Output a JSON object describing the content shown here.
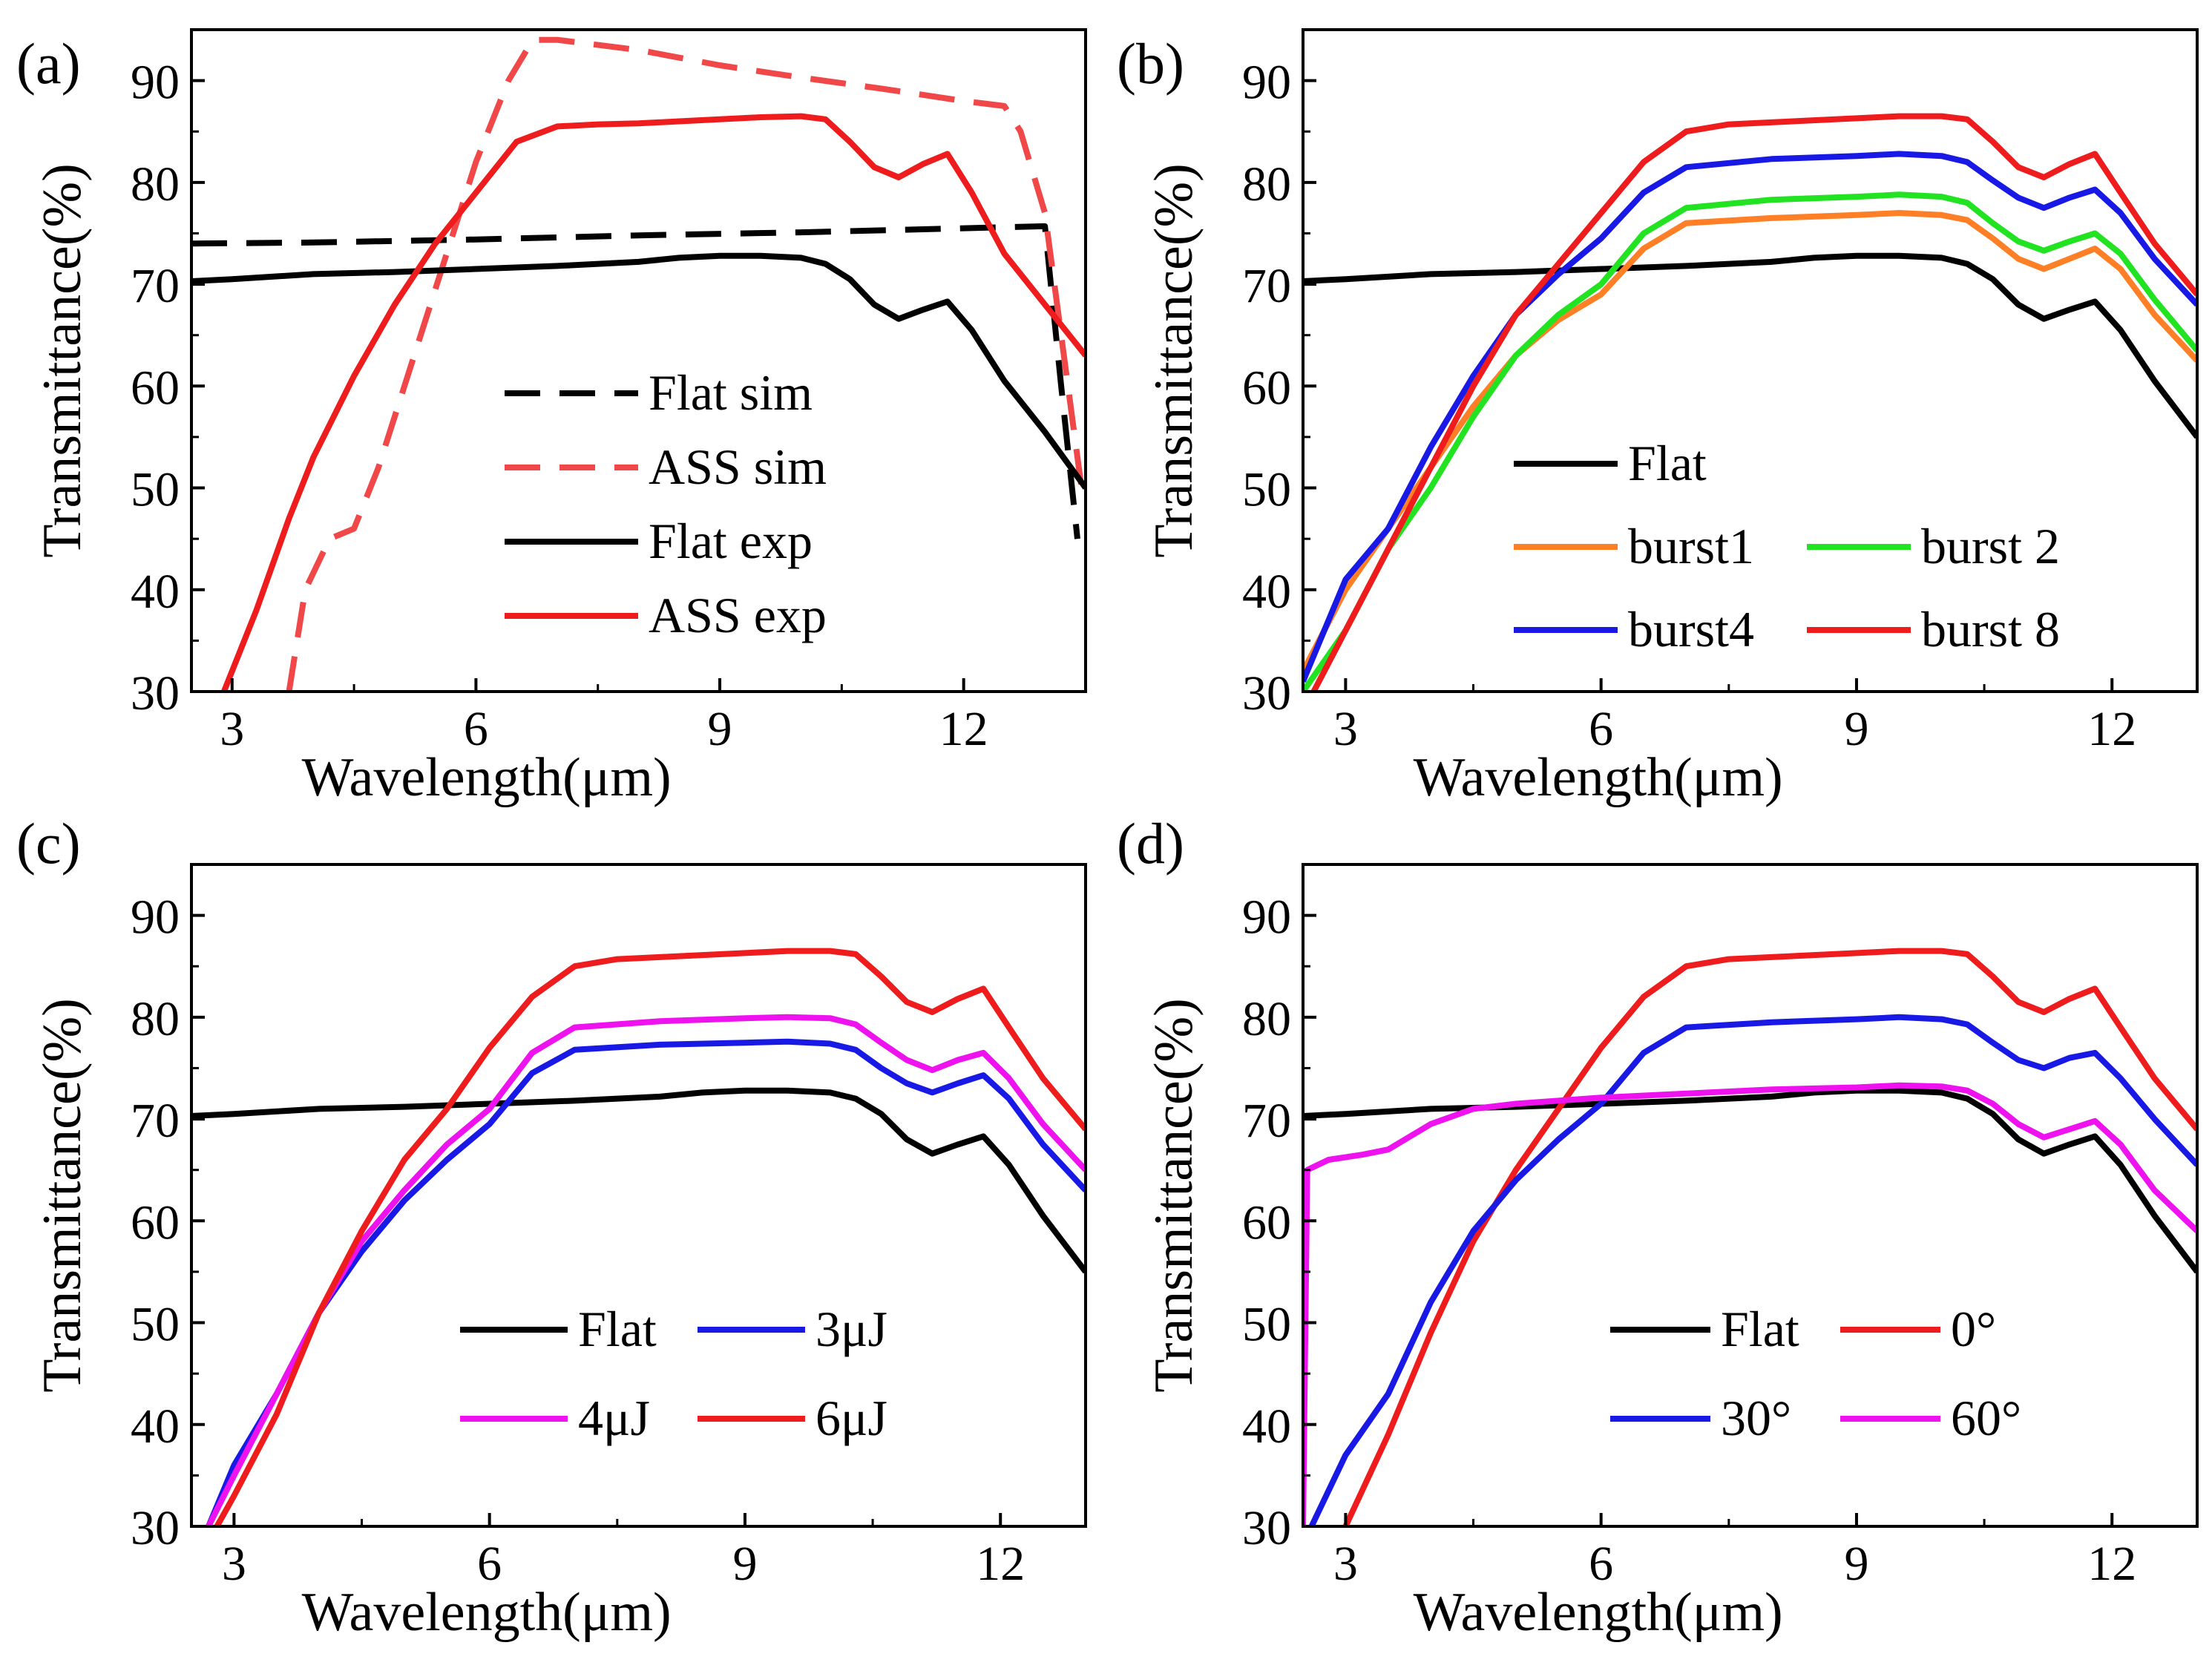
{
  "figure": {
    "panel_count": 4
  },
  "chart_data": [
    {
      "panel": "(a)",
      "type": "line",
      "xlabel": "Wavelength(μm)",
      "ylabel": "Transmittance(%)",
      "xlim": [
        2.5,
        13.5
      ],
      "ylim": [
        30,
        95
      ],
      "xticks": [
        3,
        6,
        9,
        12
      ],
      "yticks": [
        30,
        40,
        50,
        60,
        70,
        80,
        90
      ],
      "legend_position": "center",
      "series": [
        {
          "name": "Flat sim",
          "color": "#000000",
          "dash": true,
          "x": [
            2.5,
            4,
            6,
            8,
            10,
            12,
            13.0,
            13.2,
            13.4
          ],
          "y": [
            74.0,
            74.1,
            74.4,
            74.8,
            75.1,
            75.5,
            75.7,
            60,
            45
          ]
        },
        {
          "name": "ASS sim",
          "color": "#f04848",
          "dash": true,
          "x": [
            3.7,
            3.9,
            4.2,
            4.5,
            4.8,
            5.2,
            5.6,
            6.0,
            6.4,
            6.7,
            7.0,
            8,
            9,
            10,
            11,
            12,
            12.5,
            12.7,
            13.0,
            13.2,
            13.45
          ],
          "y": [
            30,
            40,
            45,
            46,
            52,
            62,
            72,
            82,
            90,
            94,
            94,
            93,
            91.5,
            90.3,
            89.2,
            88.0,
            87.5,
            85,
            77,
            65,
            50
          ]
        },
        {
          "name": "Flat exp",
          "color": "#000000",
          "dash": false,
          "x": [
            2.5,
            3,
            4,
            5,
            6,
            7,
            8,
            8.5,
            9,
            9.5,
            10,
            10.3,
            10.6,
            10.9,
            11.2,
            11.5,
            11.8,
            12.1,
            12.5,
            13.0,
            13.5
          ],
          "y": [
            70.3,
            70.5,
            71.0,
            71.2,
            71.5,
            71.8,
            72.2,
            72.6,
            72.8,
            72.8,
            72.6,
            72.0,
            70.5,
            68.0,
            66.6,
            67.5,
            68.3,
            65.5,
            60.5,
            55.5,
            50.0
          ]
        },
        {
          "name": "ASS exp",
          "color": "#ee1c1c",
          "dash": false,
          "x": [
            2.9,
            3.3,
            3.7,
            4.0,
            4.5,
            5.0,
            5.5,
            6.0,
            6.5,
            7.0,
            7.5,
            8,
            8.5,
            9,
            9.5,
            10,
            10.3,
            10.6,
            10.9,
            11.2,
            11.5,
            11.8,
            12.1,
            12.5,
            13.0,
            13.5
          ],
          "y": [
            30,
            38,
            47,
            53,
            61,
            68,
            74,
            79,
            84,
            85.5,
            85.7,
            85.8,
            86,
            86.2,
            86.4,
            86.5,
            86.2,
            84.0,
            81.5,
            80.5,
            81.8,
            82.8,
            79,
            73,
            68,
            63
          ]
        }
      ]
    },
    {
      "panel": "(b)",
      "type": "line",
      "xlabel": "Wavelength(μm)",
      "ylabel": "Transmittance(%)",
      "xlim": [
        2.5,
        13.0
      ],
      "ylim": [
        30,
        95
      ],
      "xticks": [
        3,
        6,
        9,
        12
      ],
      "yticks": [
        30,
        40,
        50,
        60,
        70,
        80,
        90
      ],
      "legend_position": "bottom-left",
      "series": [
        {
          "name": "Flat",
          "color": "#000000",
          "x": [
            2.5,
            3,
            4,
            5,
            6,
            7,
            8,
            8.5,
            9,
            9.5,
            10,
            10.3,
            10.6,
            10.9,
            11.2,
            11.5,
            11.8,
            12.1,
            12.5,
            13.0
          ],
          "y": [
            70.3,
            70.5,
            71.0,
            71.2,
            71.5,
            71.8,
            72.2,
            72.6,
            72.8,
            72.8,
            72.6,
            72.0,
            70.5,
            68.0,
            66.6,
            67.5,
            68.3,
            65.5,
            60.5,
            55.0
          ]
        },
        {
          "name": "burst1",
          "color": "#ff7f27",
          "x": [
            2.5,
            3,
            3.5,
            4,
            4.5,
            5,
            5.5,
            6,
            6.5,
            7,
            8,
            9,
            9.5,
            10,
            10.3,
            10.6,
            10.9,
            11.2,
            11.5,
            11.8,
            12.1,
            12.5,
            13.0
          ],
          "y": [
            32,
            40,
            46,
            52,
            58,
            63,
            66.5,
            69,
            73.5,
            76,
            76.5,
            76.8,
            77,
            76.8,
            76.3,
            74.5,
            72.5,
            71.5,
            72.5,
            73.5,
            71.5,
            67,
            62.5
          ]
        },
        {
          "name": "burst 2",
          "color": "#22e322",
          "x": [
            2.5,
            3,
            3.5,
            4,
            4.5,
            5,
            5.5,
            6,
            6.5,
            7,
            8,
            9,
            9.5,
            10,
            10.3,
            10.6,
            10.9,
            11.2,
            11.5,
            11.8,
            12.1,
            12.5,
            13.0
          ],
          "y": [
            30,
            36,
            44,
            50,
            57,
            63,
            67,
            70,
            75,
            77.5,
            78.3,
            78.6,
            78.8,
            78.6,
            78,
            76,
            74.2,
            73.3,
            74.2,
            75,
            73,
            68.5,
            63.5
          ]
        },
        {
          "name": "burst4",
          "color": "#1919e6",
          "x": [
            2.5,
            3,
            3.5,
            4,
            4.5,
            5,
            5.5,
            6,
            6.5,
            7,
            8,
            9,
            9.5,
            10,
            10.3,
            10.6,
            10.9,
            11.2,
            11.5,
            11.8,
            12.1,
            12.5,
            13.0
          ],
          "y": [
            31,
            41,
            46,
            54,
            61,
            67,
            71,
            74.5,
            79,
            81.5,
            82.3,
            82.6,
            82.8,
            82.6,
            82,
            80.2,
            78.5,
            77.5,
            78.5,
            79.3,
            77,
            72.5,
            68
          ]
        },
        {
          "name": "burst 8",
          "color": "#ee1c1c",
          "x": [
            2.5,
            3,
            3.5,
            4,
            4.5,
            5,
            5.5,
            6,
            6.5,
            7,
            7.5,
            8,
            9,
            9.5,
            10,
            10.3,
            10.6,
            10.9,
            11.2,
            11.5,
            11.8,
            12.1,
            12.5,
            13.0
          ],
          "y": [
            28,
            36,
            44,
            52,
            60,
            67,
            72,
            77,
            82,
            85,
            85.7,
            85.9,
            86.3,
            86.5,
            86.5,
            86.2,
            84,
            81.5,
            80.5,
            81.8,
            82.8,
            79,
            74,
            69
          ]
        }
      ]
    },
    {
      "panel": "(c)",
      "type": "line",
      "xlabel": "Wavelength(μm)",
      "ylabel": "Transmittance(%)",
      "xlim": [
        2.5,
        13.0
      ],
      "ylim": [
        30,
        95
      ],
      "xticks": [
        3,
        6,
        9,
        12
      ],
      "yticks": [
        30,
        40,
        50,
        60,
        70,
        80,
        90
      ],
      "legend_position": "bottom-right",
      "series": [
        {
          "name": "Flat",
          "color": "#000000",
          "x": [
            2.5,
            3,
            4,
            5,
            6,
            7,
            8,
            8.5,
            9,
            9.5,
            10,
            10.3,
            10.6,
            10.9,
            11.2,
            11.5,
            11.8,
            12.1,
            12.5,
            13.0
          ],
          "y": [
            70.3,
            70.5,
            71.0,
            71.2,
            71.5,
            71.8,
            72.2,
            72.6,
            72.8,
            72.8,
            72.6,
            72.0,
            70.5,
            68.0,
            66.6,
            67.5,
            68.3,
            65.5,
            60.5,
            55.0
          ]
        },
        {
          "name": "3μJ",
          "color": "#1919e6",
          "x": [
            2.7,
            3,
            3.5,
            4,
            4.5,
            5,
            5.5,
            6,
            6.5,
            7,
            8,
            9,
            9.5,
            10,
            10.3,
            10.6,
            10.9,
            11.2,
            11.5,
            11.8,
            12.1,
            12.5,
            13.0
          ],
          "y": [
            30,
            36,
            43,
            51,
            57,
            62,
            66,
            69.5,
            74.5,
            76.8,
            77.3,
            77.5,
            77.6,
            77.4,
            76.8,
            75,
            73.5,
            72.6,
            73.5,
            74.3,
            72,
            67.5,
            63
          ]
        },
        {
          "name": "4μJ",
          "color": "#ee12ee",
          "x": [
            2.7,
            3,
            3.5,
            4,
            4.5,
            5,
            5.5,
            6,
            6.5,
            7,
            8,
            9,
            9.5,
            10,
            10.3,
            10.6,
            10.9,
            11.2,
            11.5,
            11.8,
            12.1,
            12.5,
            13.0
          ],
          "y": [
            30,
            35,
            43,
            51,
            58,
            63,
            67.5,
            71,
            76.5,
            79,
            79.6,
            79.9,
            80,
            79.9,
            79.3,
            77.5,
            75.8,
            74.8,
            75.8,
            76.5,
            74,
            69.5,
            65
          ]
        },
        {
          "name": "6μJ",
          "color": "#ee1c1c",
          "x": [
            2.8,
            3,
            3.5,
            4,
            4.5,
            5,
            5.5,
            6,
            6.5,
            7,
            7.5,
            8,
            9,
            9.5,
            10,
            10.3,
            10.6,
            10.9,
            11.2,
            11.5,
            11.8,
            12.1,
            12.5,
            13.0
          ],
          "y": [
            30,
            33,
            41,
            51,
            59,
            66,
            71,
            77,
            82,
            85,
            85.7,
            85.9,
            86.3,
            86.5,
            86.5,
            86.2,
            84,
            81.5,
            80.5,
            81.8,
            82.8,
            79,
            74,
            69
          ]
        }
      ]
    },
    {
      "panel": "(d)",
      "type": "line",
      "xlabel": "Wavelength(μm)",
      "ylabel": "Transmittance(%)",
      "xlim": [
        2.5,
        13.0
      ],
      "ylim": [
        30,
        95
      ],
      "xticks": [
        3,
        6,
        9,
        12
      ],
      "yticks": [
        30,
        40,
        50,
        60,
        70,
        80,
        90
      ],
      "legend_position": "bottom-right",
      "series": [
        {
          "name": "Flat",
          "color": "#000000",
          "x": [
            2.5,
            3,
            4,
            5,
            6,
            7,
            8,
            8.5,
            9,
            9.5,
            10,
            10.3,
            10.6,
            10.9,
            11.2,
            11.5,
            11.8,
            12.1,
            12.5,
            13.0
          ],
          "y": [
            70.3,
            70.5,
            71.0,
            71.2,
            71.5,
            71.8,
            72.2,
            72.6,
            72.8,
            72.8,
            72.6,
            72.0,
            70.5,
            68.0,
            66.6,
            67.5,
            68.3,
            65.5,
            60.5,
            55.0
          ]
        },
        {
          "name": "0°",
          "color": "#ee1c1c",
          "x": [
            3.0,
            3.5,
            4,
            4.5,
            5,
            5.5,
            6,
            6.5,
            7,
            7.5,
            8,
            9,
            9.5,
            10,
            10.3,
            10.6,
            10.9,
            11.2,
            11.5,
            11.8,
            12.1,
            12.5,
            13.0
          ],
          "y": [
            30,
            39,
            49,
            58,
            65,
            71,
            77,
            82,
            85,
            85.7,
            85.9,
            86.3,
            86.5,
            86.5,
            86.2,
            84,
            81.5,
            80.5,
            81.8,
            82.8,
            79,
            74,
            69
          ]
        },
        {
          "name": "30°",
          "color": "#1919e6",
          "x": [
            2.6,
            3,
            3.5,
            4,
            4.5,
            5,
            5.5,
            6,
            6.5,
            7,
            8,
            9,
            9.5,
            10,
            10.3,
            10.6,
            10.9,
            11.2,
            11.5,
            11.8,
            12.1,
            12.5,
            13.0
          ],
          "y": [
            30,
            37,
            43,
            52,
            59,
            64,
            68,
            71.5,
            76.5,
            79,
            79.5,
            79.8,
            80,
            79.8,
            79.3,
            77.5,
            75.8,
            75,
            76,
            76.5,
            74,
            70,
            65.5
          ]
        },
        {
          "name": "60°",
          "color": "#ee12ee",
          "x": [
            2.5,
            2.55,
            2.8,
            3.2,
            3.5,
            4,
            4.5,
            5,
            5.5,
            6,
            7,
            8,
            9,
            9.5,
            10,
            10.3,
            10.6,
            10.9,
            11.2,
            11.5,
            11.8,
            12.1,
            12.5,
            13.0
          ],
          "y": [
            30,
            65,
            66,
            66.5,
            67,
            69.5,
            71,
            71.5,
            71.8,
            72.1,
            72.5,
            72.9,
            73.1,
            73.3,
            73.2,
            72.8,
            71.5,
            69.5,
            68.2,
            69,
            69.8,
            67.5,
            63,
            59
          ]
        }
      ]
    }
  ]
}
